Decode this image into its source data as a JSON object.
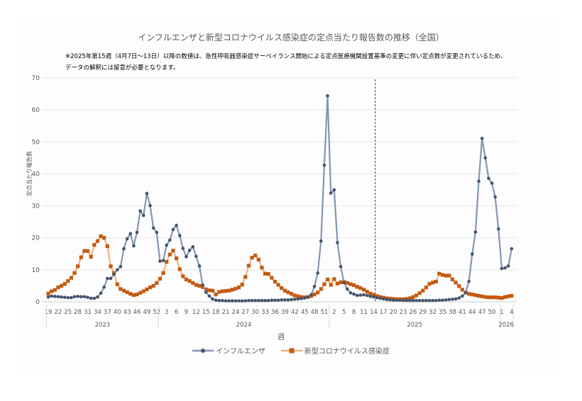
{
  "chart_data": {
    "type": "line",
    "title": "インフルエンザと新型コロナウイルス感染症の定点当たり報告数の推移（全国）",
    "notes": [
      "※2025年第15週（4月7日～13日）以降の数値は、急性呼吸器感染症サーベイランス開始による定点医療機関設置基準の変更に伴い定点数が変更されているため、",
      "データの解釈には留意が必要となります。"
    ],
    "xlabel": "週",
    "ylabel": "定点当たり報告数",
    "ylim": [
      0,
      70
    ],
    "yticks": [
      0,
      10,
      20,
      30,
      40,
      50,
      60,
      70
    ],
    "grid": true,
    "legend_position": "bottom",
    "reference_line": {
      "between_weeks": "2025-14 / 2025-15",
      "style": "dashed"
    },
    "years": [
      {
        "year": "2023",
        "weeks": [
          19,
          52
        ]
      },
      {
        "year": "2024",
        "weeks": [
          1,
          52
        ]
      },
      {
        "year": "2025",
        "weeks": [
          1,
          52
        ]
      },
      {
        "year": "2026",
        "weeks": [
          1,
          4
        ]
      }
    ],
    "series": [
      {
        "name": "インフルエンザ",
        "line_color": "#8496b0",
        "marker_color": "#44546a",
        "marker": "circle",
        "values": {
          "2023": [
            1.5,
            1.8,
            1.7,
            1.6,
            1.5,
            1.4,
            1.3,
            1.3,
            1.6,
            1.7,
            1.6,
            1.6,
            1.4,
            1.1,
            1.1,
            1.5,
            2.7,
            4.6,
            7.3,
            7.3,
            8.6,
            10.0,
            11.0,
            16.6,
            19.7,
            21.3,
            17.5,
            21.7,
            28.4,
            27.0,
            33.9,
            30.1,
            23.1,
            21.7
          ],
          "2024": [
            12.7,
            12.9,
            17.7,
            19.3,
            22.6,
            23.9,
            20.7,
            16.7,
            14.1,
            16.1,
            17.2,
            14.2,
            11.2,
            5.2,
            3.0,
            1.8,
            0.9,
            0.5,
            0.4,
            0.4,
            0.3,
            0.3,
            0.3,
            0.3,
            0.3,
            0.3,
            0.3,
            0.4,
            0.4,
            0.4,
            0.4,
            0.4,
            0.4,
            0.4,
            0.5,
            0.5,
            0.5,
            0.6,
            0.6,
            0.6,
            0.7,
            0.8,
            0.9,
            1.0,
            1.2,
            1.5,
            2.2,
            4.8,
            9.0,
            19.0,
            42.7,
            64.4
          ],
          "2025": [
            34.0,
            35.0,
            18.5,
            11.0,
            6.0,
            4.0,
            2.8,
            2.4,
            2.0,
            2.1,
            2.2,
            2.0,
            1.7,
            1.5,
            1.3,
            1.1,
            0.9,
            0.7,
            0.6,
            0.5,
            0.5,
            0.5,
            0.4,
            0.4,
            0.4,
            0.4,
            0.4,
            0.4,
            0.4,
            0.4,
            0.4,
            0.4,
            0.4,
            0.5,
            0.5,
            0.6,
            0.7,
            0.8,
            0.9,
            1.2,
            1.8,
            2.8,
            6.4,
            14.9,
            21.8,
            37.7,
            51.1,
            45.0,
            38.6,
            37.1,
            32.8,
            22.8
          ],
          "2026": [
            10.4,
            10.6,
            11.2,
            16.6
          ]
        }
      },
      {
        "name": "新型コロナウイルス感染症",
        "line_color": "#f4b183",
        "marker_color": "#c55a11",
        "marker": "square",
        "values": {
          "2023": [
            2.6,
            3.3,
            3.7,
            4.5,
            5.0,
            5.6,
            6.5,
            7.5,
            9.0,
            11.1,
            13.9,
            15.9,
            15.9,
            14.1,
            17.8,
            19.0,
            20.5,
            20.0,
            17.4,
            11.1,
            9.0,
            5.5,
            4.0,
            3.5,
            3.0,
            2.5,
            2.1,
            2.3,
            2.8,
            3.3,
            3.9,
            4.5,
            5.0,
            5.9
          ],
          "2024": [
            7.2,
            9.0,
            12.5,
            14.8,
            16.0,
            13.6,
            10.2,
            8.0,
            7.0,
            6.5,
            5.9,
            5.3,
            5.0,
            4.6,
            3.9,
            3.6,
            3.5,
            2.3,
            3.1,
            3.3,
            3.4,
            3.5,
            3.8,
            4.1,
            4.5,
            5.4,
            7.8,
            11.3,
            13.8,
            14.5,
            13.2,
            10.7,
            8.8,
            8.7,
            7.5,
            6.3,
            5.3,
            4.3,
            3.5,
            3.0,
            2.5,
            2.0,
            1.7,
            1.5,
            1.4,
            1.5,
            1.8,
            2.3,
            2.9,
            4.0,
            5.5,
            7.0
          ],
          "2025": [
            5.3,
            7.1,
            5.7,
            6.1,
            6.2,
            5.9,
            5.5,
            5.2,
            4.7,
            4.3,
            3.8,
            3.2,
            2.6,
            2.2,
            1.8,
            1.5,
            1.3,
            1.1,
            1.0,
            0.9,
            0.8,
            0.8,
            0.8,
            0.9,
            1.1,
            1.5,
            2.0,
            2.7,
            3.5,
            4.5,
            5.6,
            6.0,
            6.3,
            8.8,
            8.4,
            8.2,
            8.2,
            7.0,
            6.0,
            4.9,
            3.8,
            2.9,
            2.5,
            2.3,
            2.1,
            1.9,
            1.7,
            1.5,
            1.4,
            1.4,
            1.4,
            1.3
          ],
          "2026": [
            1.2,
            1.5,
            1.7,
            1.9
          ]
        }
      }
    ]
  }
}
